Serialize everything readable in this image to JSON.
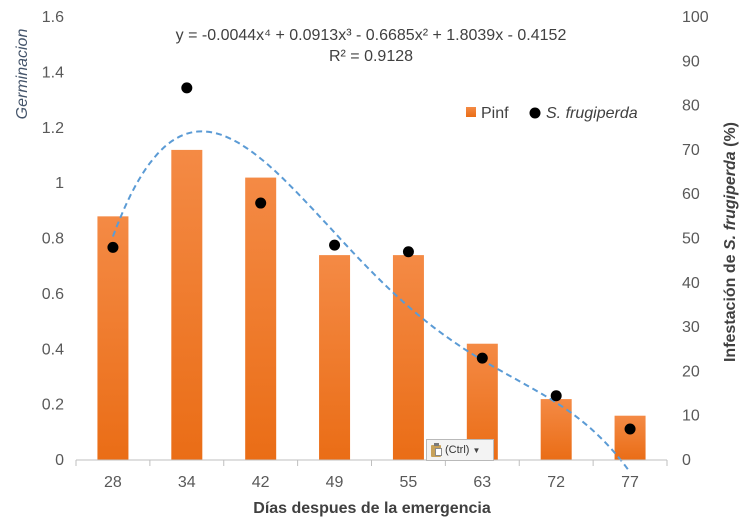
{
  "chart_data": {
    "type": "bar+scatter",
    "categories": [
      "28",
      "34",
      "42",
      "49",
      "55",
      "63",
      "72",
      "77"
    ],
    "series": [
      {
        "name": "Pinf",
        "kind": "bar",
        "axis": "left",
        "color": "#f0782a",
        "values": [
          0.88,
          1.12,
          1.02,
          0.74,
          0.74,
          0.42,
          0.22,
          0.16
        ]
      },
      {
        "name": "S. frugiperda",
        "kind": "scatter",
        "axis": "right",
        "color": "#000000",
        "values": [
          48,
          84,
          58,
          48.5,
          47,
          23,
          14.5,
          7
        ]
      }
    ],
    "trendline": {
      "equation": "y = -0.0044x⁴ + 0.0913x³ - 0.6685x² + 1.8039x - 0.4152",
      "r2": "R² = 0.9128",
      "coefficients": [
        -0.0044,
        0.0913,
        -0.6685,
        1.8039,
        -0.4152
      ],
      "color": "#5b9bd5",
      "style": "dashed"
    },
    "xlabel": "Días despues de la emergencia",
    "ylabel_left": "Germinacion",
    "ylabel_right_prefix": "Infestación de ",
    "ylabel_right_italic": "S. frugiperda",
    "ylabel_right_suffix": " (%)",
    "ylim_left": [
      0,
      1.6
    ],
    "ylim_right": [
      0,
      100
    ],
    "yticks_left": [
      "0",
      "0.2",
      "0.4",
      "0.6",
      "0.8",
      "1",
      "1.2",
      "1.4",
      "1.6"
    ],
    "yticks_right": [
      "0",
      "10",
      "20",
      "30",
      "40",
      "50",
      "60",
      "70",
      "80",
      "90",
      "100"
    ],
    "legend_position": "top-right",
    "grid": false
  },
  "paste_options": {
    "label": "(Ctrl)",
    "icon": "clipboard-icon"
  }
}
